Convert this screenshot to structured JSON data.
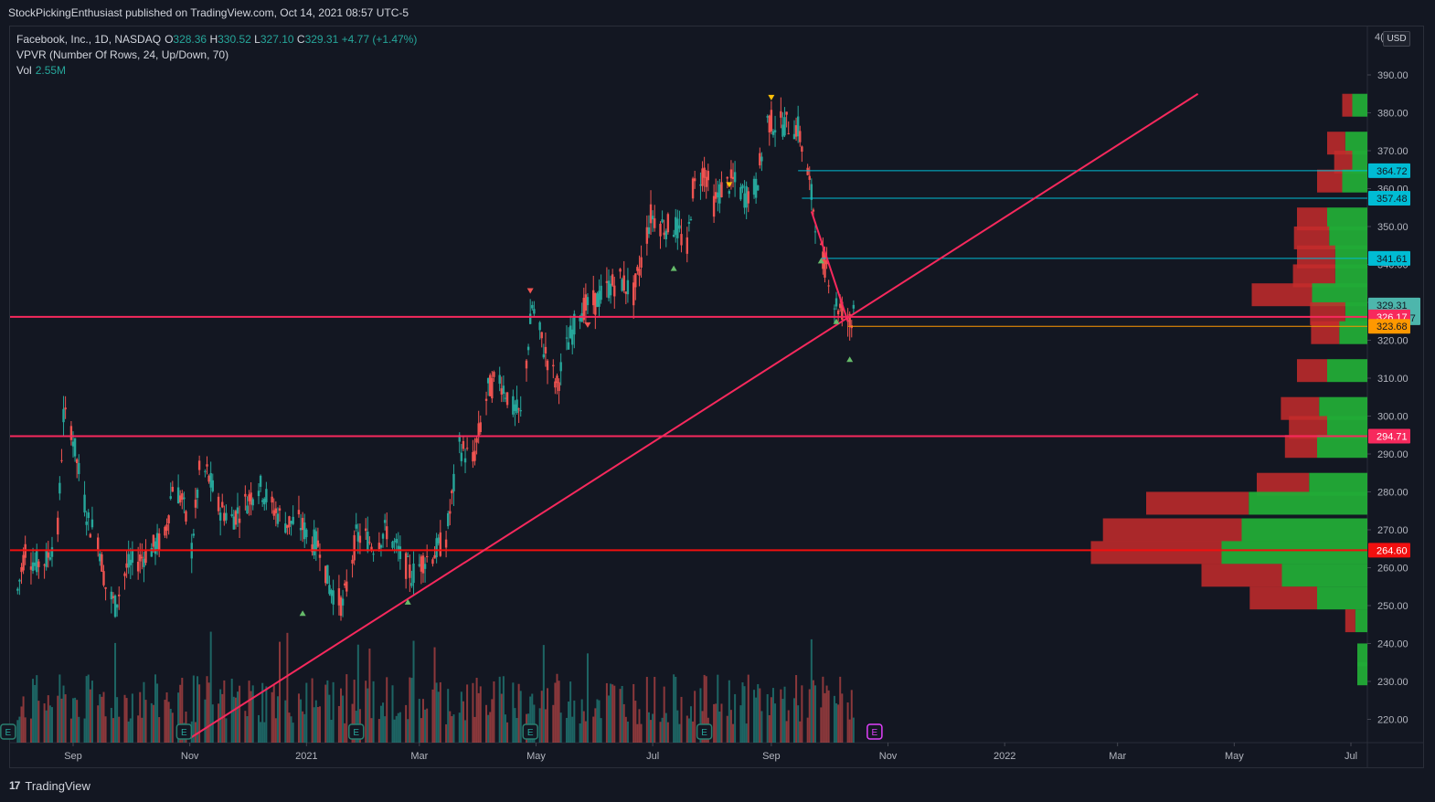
{
  "header": {
    "publish_text": "StockPickingEnthusiast published on TradingView.com, Oct 14, 2021 08:57 UTC-5"
  },
  "legend": {
    "symbol": "Facebook, Inc., 1D, NASDAQ",
    "o_label": "O",
    "o": "328.36",
    "h_label": "H",
    "h": "330.52",
    "l_label": "L",
    "l": "327.10",
    "c_label": "C",
    "c": "329.31",
    "change": "+4.77 (+1.47%)",
    "vpvr": "VPVR (Number Of Rows, 24, Up/Down, 70)",
    "vol_label": "Vol",
    "vol": "2.55M"
  },
  "price_axis": {
    "currency": "USD",
    "prefix": "4(",
    "ticks": [
      "390.00",
      "380.00",
      "370.00",
      "360.00",
      "350.00",
      "340.00",
      "330.00",
      "320.00",
      "310.00",
      "300.00",
      "290.00",
      "280.00",
      "270.00",
      "260.00",
      "250.00",
      "240.00",
      "230.00",
      "220.00"
    ],
    "badges": [
      {
        "value": 364.72,
        "text": "364.72",
        "color": "#00bcd4",
        "text_color": "#131722"
      },
      {
        "value": 357.48,
        "text": "357.48",
        "color": "#00bcd4",
        "text_color": "#131722"
      },
      {
        "value": 341.61,
        "text": "341.61",
        "color": "#00bcd4",
        "text_color": "#131722"
      },
      {
        "value": 329.31,
        "text": "329.31",
        "sub": "06:02:17",
        "color": "#4db6ac",
        "text_color": "#131722"
      },
      {
        "value": 326.17,
        "text": "326.17",
        "color": "#f7295d",
        "text_color": "#ffffff"
      },
      {
        "value": 323.68,
        "text": "323.68",
        "color": "#ff9800",
        "text_color": "#131722"
      },
      {
        "value": 294.71,
        "text": "294.71",
        "color": "#f7295d",
        "text_color": "#ffffff"
      },
      {
        "value": 264.6,
        "text": "264.60",
        "color": "#f20f0f",
        "text_color": "#ffffff"
      }
    ]
  },
  "time_axis": {
    "labels": [
      "Sep",
      "Nov",
      "2021",
      "Mar",
      "May",
      "Jul",
      "Sep",
      "Nov",
      "2022",
      "Mar",
      "May",
      "Jul"
    ]
  },
  "chart_data": {
    "type": "candlestick",
    "title": "",
    "y_range": [
      215,
      396
    ],
    "price_path": [
      [
        "2020-08-03",
        254
      ],
      [
        "2020-08-07",
        265
      ],
      [
        "2020-08-12",
        261
      ],
      [
        "2020-08-18",
        262
      ],
      [
        "2020-08-24",
        270
      ],
      [
        "2020-08-27",
        300
      ],
      [
        "2020-08-31",
        297
      ],
      [
        "2020-09-04",
        285
      ],
      [
        "2020-09-09",
        272
      ],
      [
        "2020-09-14",
        268
      ],
      [
        "2020-09-18",
        255
      ],
      [
        "2020-09-23",
        250
      ],
      [
        "2020-09-29",
        260
      ],
      [
        "2020-10-05",
        262
      ],
      [
        "2020-10-12",
        265
      ],
      [
        "2020-10-19",
        268
      ],
      [
        "2020-10-23",
        282
      ],
      [
        "2020-10-28",
        278
      ],
      [
        "2020-11-02",
        265
      ],
      [
        "2020-11-06",
        285
      ],
      [
        "2020-11-10",
        285
      ],
      [
        "2020-11-16",
        276
      ],
      [
        "2020-11-23",
        273
      ],
      [
        "2020-11-30",
        277
      ],
      [
        "2020-12-07",
        282
      ],
      [
        "2020-12-14",
        276
      ],
      [
        "2020-12-21",
        272
      ],
      [
        "2020-12-28",
        272
      ],
      [
        "2021-01-04",
        267
      ],
      [
        "2021-01-08",
        266
      ],
      [
        "2021-01-13",
        255
      ],
      [
        "2021-01-20",
        250
      ],
      [
        "2021-01-27",
        268
      ],
      [
        "2021-02-01",
        268
      ],
      [
        "2021-02-05",
        266
      ],
      [
        "2021-02-12",
        270
      ],
      [
        "2021-02-19",
        263
      ],
      [
        "2021-02-25",
        258
      ],
      [
        "2021-03-03",
        262
      ],
      [
        "2021-03-09",
        264
      ],
      [
        "2021-03-15",
        268
      ],
      [
        "2021-03-22",
        292
      ],
      [
        "2021-03-29",
        288
      ],
      [
        "2021-04-06",
        307
      ],
      [
        "2021-04-12",
        310
      ],
      [
        "2021-04-19",
        302
      ],
      [
        "2021-04-23",
        300
      ],
      [
        "2021-04-29",
        329
      ],
      [
        "2021-05-05",
        318
      ],
      [
        "2021-05-12",
        308
      ],
      [
        "2021-05-17",
        318
      ],
      [
        "2021-05-24",
        328
      ],
      [
        "2021-06-01",
        330
      ],
      [
        "2021-06-08",
        334
      ],
      [
        "2021-06-14",
        336
      ],
      [
        "2021-06-21",
        332
      ],
      [
        "2021-06-25",
        341
      ],
      [
        "2021-06-30",
        353
      ],
      [
        "2021-07-07",
        350
      ],
      [
        "2021-07-13",
        350
      ],
      [
        "2021-07-19",
        344
      ],
      [
        "2021-07-22",
        360
      ],
      [
        "2021-07-28",
        365
      ],
      [
        "2021-08-02",
        356
      ],
      [
        "2021-08-06",
        360
      ],
      [
        "2021-08-12",
        362
      ],
      [
        "2021-08-18",
        358
      ],
      [
        "2021-08-24",
        360
      ],
      [
        "2021-08-30",
        378
      ],
      [
        "2021-09-03",
        377
      ],
      [
        "2021-09-09",
        377
      ],
      [
        "2021-09-15",
        376
      ],
      [
        "2021-09-20",
        364
      ],
      [
        "2021-09-24",
        352
      ],
      [
        "2021-09-28",
        340
      ],
      [
        "2021-09-30",
        340
      ],
      [
        "2021-10-04",
        330
      ],
      [
        "2021-10-08",
        328
      ],
      [
        "2021-10-13",
        324
      ],
      [
        "2021-10-14",
        329.31
      ]
    ],
    "markers": [
      {
        "x": "2020-12-30",
        "price": 248,
        "dir": "up",
        "color": "#66bb6a"
      },
      {
        "x": "2021-02-23",
        "price": 251,
        "dir": "up",
        "color": "#66bb6a"
      },
      {
        "x": "2021-04-28",
        "price": 333,
        "dir": "down",
        "color": "#ef5350"
      },
      {
        "x": "2021-05-28",
        "price": 324,
        "dir": "down",
        "color": "#ef5350"
      },
      {
        "x": "2021-07-12",
        "price": 339,
        "dir": "up",
        "color": "#66bb6a"
      },
      {
        "x": "2021-08-10",
        "price": 361,
        "dir": "down",
        "color": "#ffc107"
      },
      {
        "x": "2021-09-01",
        "price": 384,
        "dir": "down",
        "color": "#ffc107"
      },
      {
        "x": "2021-09-27",
        "price": 341,
        "dir": "up",
        "color": "#66bb6a"
      },
      {
        "x": "2021-10-05",
        "price": 325,
        "dir": "up",
        "color": "#66bb6a"
      },
      {
        "x": "2021-10-12",
        "price": 315,
        "dir": "up",
        "color": "#66bb6a"
      }
    ],
    "earnings": [
      "2020-07-29",
      "2020-10-29",
      "2021-01-27",
      "2021-04-28",
      "2021-07-28",
      "2021-10-25"
    ],
    "hlines": [
      {
        "price": 326.17,
        "x_from": "2020-07-01",
        "x_to": "2022-07-31",
        "color": "#f7295d",
        "width": 2
      },
      {
        "price": 294.71,
        "x_from": "2020-07-01",
        "x_to": "2022-07-31",
        "color": "#f7295d",
        "width": 2
      },
      {
        "price": 264.6,
        "x_from": "2020-07-01",
        "x_to": "2022-07-31",
        "color": "#f20f0f",
        "width": 2
      },
      {
        "price": 364.72,
        "x_from": "2021-09-15",
        "x_to": "2022-07-31",
        "color": "#00bcd4",
        "width": 1
      },
      {
        "price": 357.48,
        "x_from": "2021-09-17",
        "x_to": "2022-07-31",
        "color": "#00bcd4",
        "width": 1
      },
      {
        "price": 341.61,
        "x_from": "2021-09-27",
        "x_to": "2022-07-31",
        "color": "#00bcd4",
        "width": 1
      },
      {
        "price": 323.68,
        "x_from": "2021-10-11",
        "x_to": "2022-07-31",
        "color": "#ff9800",
        "width": 1
      }
    ],
    "trendlines": [
      {
        "from": [
          "2020-11-01",
          215
        ],
        "to": [
          "2022-04-12",
          385
        ],
        "color": "#f7295d",
        "width": 2
      },
      {
        "from": [
          "2021-09-22",
          354
        ],
        "to": [
          "2021-10-11",
          325
        ],
        "color": "#f7295d",
        "width": 2
      }
    ],
    "vpvr": [
      {
        "price": 382,
        "up": 15,
        "down": 10
      },
      {
        "price": 372,
        "up": 22,
        "down": 18
      },
      {
        "price": 367,
        "up": 15,
        "down": 18
      },
      {
        "price": 362,
        "up": 25,
        "down": 25
      },
      {
        "price": 352,
        "up": 40,
        "down": 30
      },
      {
        "price": 347,
        "up": 38,
        "down": 35
      },
      {
        "price": 342,
        "up": 32,
        "down": 38
      },
      {
        "price": 337,
        "up": 32,
        "down": 42
      },
      {
        "price": 332,
        "up": 55,
        "down": 60
      },
      {
        "price": 327,
        "up": 22,
        "down": 35
      },
      {
        "price": 322,
        "up": 28,
        "down": 28
      },
      {
        "price": 312,
        "up": 40,
        "down": 30
      },
      {
        "price": 302,
        "up": 48,
        "down": 38
      },
      {
        "price": 297,
        "up": 40,
        "down": 38
      },
      {
        "price": 292,
        "up": 50,
        "down": 32
      },
      {
        "price": 282,
        "up": 58,
        "down": 52
      },
      {
        "price": 277,
        "up": 118,
        "down": 102
      },
      {
        "price": 270,
        "up": 125,
        "down": 138
      },
      {
        "price": 264,
        "up": 145,
        "down": 130
      },
      {
        "price": 258,
        "up": 85,
        "down": 80
      },
      {
        "price": 252,
        "up": 50,
        "down": 67
      },
      {
        "price": 246,
        "up": 12,
        "down": 10
      },
      {
        "price": 237,
        "up": 10,
        "down": 0
      },
      {
        "price": 232,
        "up": 10,
        "down": 0
      }
    ]
  }
}
